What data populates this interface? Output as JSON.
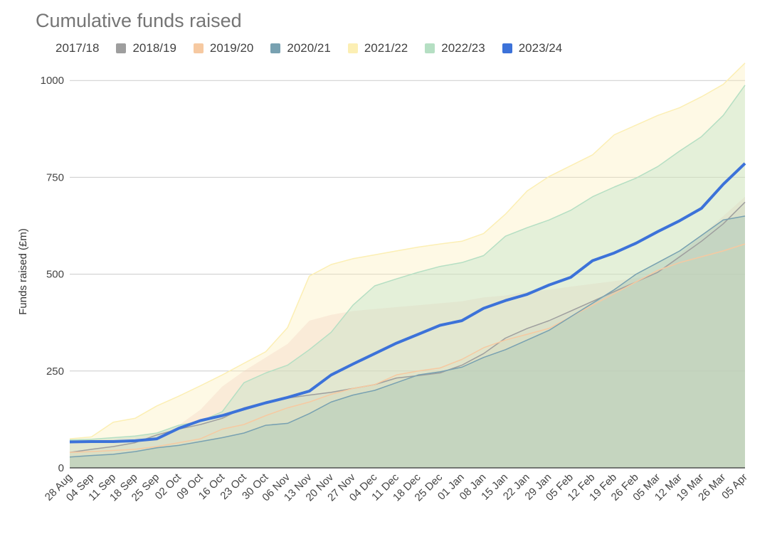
{
  "chart_data": {
    "type": "area",
    "title": "Cumulative funds raised",
    "ylabel": "Funds raised (£m)",
    "xlabel": "",
    "ylim": [
      0,
      1050
    ],
    "yticks": [
      0,
      250,
      500,
      750,
      1000
    ],
    "grid": true,
    "legend_position": "top",
    "categories": [
      "28 Aug",
      "04 Sep",
      "11 Sep",
      "18 Sep",
      "25 Sep",
      "02 Oct",
      "09 Oct",
      "16 Oct",
      "23 Oct",
      "30 Oct",
      "06 Nov",
      "13 Nov",
      "20 Nov",
      "27 Nov",
      "04 Dec",
      "11 Dec",
      "18 Dec",
      "25 Dec",
      "01 Jan",
      "08 Jan",
      "15 Jan",
      "22 Jan",
      "29 Jan",
      "05 Feb",
      "12 Feb",
      "19 Feb",
      "26 Feb",
      "05 Mar",
      "12 Mar",
      "19 Mar",
      "26 Mar",
      "05 Apr"
    ],
    "series": [
      {
        "name": "2017/18",
        "color": "#e8b4b8",
        "fill_opacity": 0.28,
        "line_width": 0,
        "values": [
          70,
          72,
          75,
          80,
          90,
          110,
          150,
          210,
          250,
          285,
          320,
          380,
          395,
          405,
          410,
          415,
          420,
          425,
          430,
          440,
          445,
          455,
          460,
          468,
          475,
          482,
          490,
          500,
          550,
          600,
          650,
          700
        ]
      },
      {
        "name": "2018/19",
        "color": "#9e9e9e",
        "fill_opacity": 0.2,
        "line_width": 1.5,
        "values": [
          40,
          48,
          55,
          65,
          85,
          100,
          112,
          128,
          155,
          170,
          180,
          188,
          195,
          205,
          215,
          232,
          238,
          245,
          265,
          295,
          335,
          360,
          380,
          405,
          430,
          455,
          480,
          505,
          545,
          585,
          630,
          686
        ]
      },
      {
        "name": "2019/20",
        "color": "#f6c9a1",
        "fill_opacity": 0.2,
        "line_width": 1.5,
        "values": [
          40,
          42,
          45,
          48,
          55,
          65,
          75,
          100,
          112,
          135,
          155,
          170,
          190,
          205,
          215,
          240,
          250,
          258,
          280,
          310,
          330,
          345,
          360,
          390,
          420,
          450,
          480,
          510,
          530,
          545,
          560,
          578
        ]
      },
      {
        "name": "2020/21",
        "color": "#78a1b1",
        "fill_opacity": 0.45,
        "line_width": 1.5,
        "values": [
          28,
          32,
          35,
          42,
          52,
          58,
          68,
          78,
          90,
          110,
          115,
          140,
          170,
          188,
          200,
          220,
          240,
          248,
          260,
          285,
          305,
          330,
          355,
          390,
          425,
          460,
          500,
          530,
          560,
          600,
          640,
          650
        ]
      },
      {
        "name": "2021/22",
        "color": "#fcefb4",
        "fill_opacity": 0.35,
        "line_width": 1.5,
        "values": [
          75,
          80,
          118,
          128,
          160,
          185,
          212,
          240,
          270,
          300,
          362,
          495,
          525,
          540,
          550,
          560,
          570,
          578,
          585,
          605,
          655,
          715,
          752,
          780,
          808,
          860,
          885,
          910,
          930,
          958,
          990,
          1045
        ]
      },
      {
        "name": "2022/23",
        "color": "#b5dfc3",
        "fill_opacity": 0.35,
        "line_width": 1.5,
        "values": [
          72,
          74,
          78,
          82,
          90,
          110,
          120,
          145,
          220,
          245,
          265,
          305,
          350,
          420,
          470,
          488,
          505,
          520,
          530,
          548,
          598,
          620,
          640,
          665,
          700,
          725,
          748,
          778,
          818,
          855,
          910,
          988
        ]
      },
      {
        "name": "2023/24",
        "color": "#3c72d9",
        "fill_opacity": 0.0,
        "line_width": 4,
        "values": [
          67,
          68,
          68,
          70,
          75,
          102,
          122,
          135,
          152,
          168,
          182,
          198,
          240,
          268,
          295,
          322,
          345,
          368,
          380,
          412,
          432,
          448,
          472,
          492,
          535,
          555,
          580,
          610,
          638,
          670,
          732,
          786
        ]
      }
    ]
  }
}
